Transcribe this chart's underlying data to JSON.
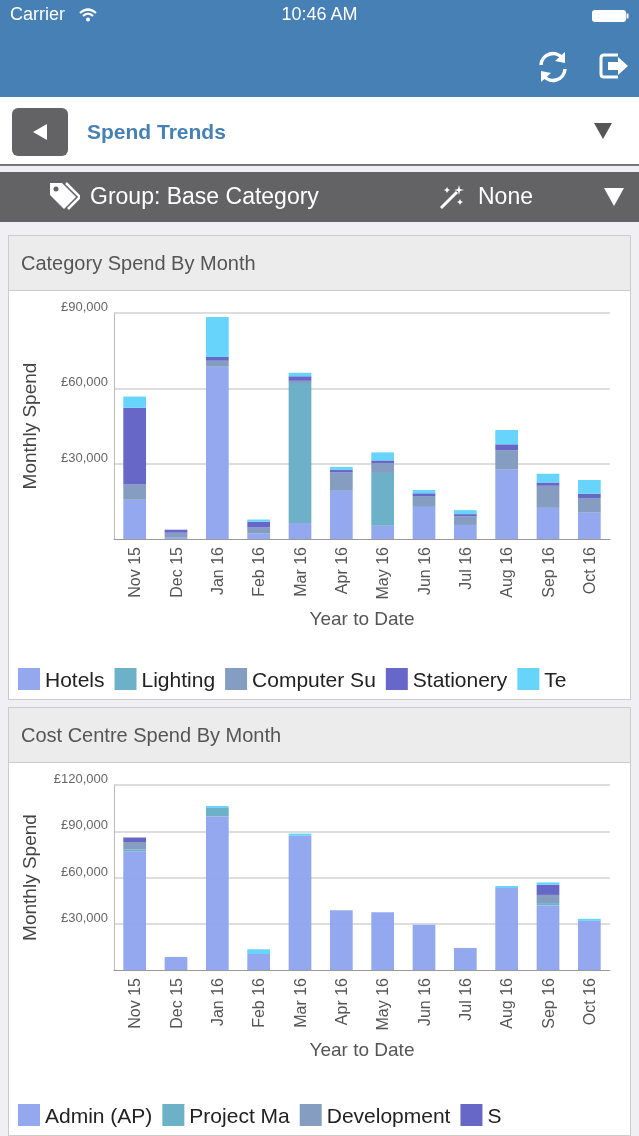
{
  "chart_data": [
    {
      "type": "other",
      "title": "Spend Trends",
      "annotations": [
        "Carrier",
        "10:46 AM",
        "Group: Base Category",
        "None"
      ]
    },
    {
      "type": "bar",
      "title": "Category Spend By Month",
      "xlabel": "Year to Date",
      "ylabel": "Monthly Spend",
      "stacked": true,
      "legend": "bottom",
      "grid": "y",
      "categories": [
        "Nov 15",
        "Dec 15",
        "Jan 16",
        "Feb 16",
        "Mar 16",
        "Apr 16",
        "May 16",
        "Jun 16",
        "Jul 16",
        "Aug 16",
        "Sep 16",
        "Oct 16"
      ],
      "ylim": [
        0,
        90000
      ],
      "yticks": [
        {
          "value": 30000,
          "label": "£30,000"
        },
        {
          "value": 60000,
          "label": "£60,000"
        },
        {
          "value": 90000,
          "label": "£90,000"
        }
      ],
      "series": [
        {
          "name": "Hotels",
          "color": "#8ea3ee",
          "values": [
            15600,
            500,
            68600,
            2200,
            6400,
            19200,
            5300,
            12800,
            5600,
            27600,
            12400,
            10500
          ]
        },
        {
          "name": "Lighting",
          "color": "#64adc4",
          "values": [
            0,
            0,
            0,
            0,
            55700,
            0,
            21000,
            0,
            0,
            0,
            0,
            0
          ]
        },
        {
          "name": "Computer Su",
          "color": "#7f98bf",
          "values": [
            6100,
            2000,
            2400,
            2400,
            900,
            7300,
            3900,
            4300,
            3500,
            7700,
            8800,
            5800
          ]
        },
        {
          "name": "Stationery",
          "color": "#5f5fc4",
          "values": [
            30600,
            1200,
            1500,
            2300,
            1800,
            1100,
            1100,
            1100,
            800,
            2400,
            1300,
            1700
          ]
        },
        {
          "name": "Te",
          "color": "#5fd3fb",
          "values": [
            4400,
            0,
            15900,
            900,
            1400,
            1100,
            3200,
            1300,
            1600,
            5700,
            3500,
            5500
          ]
        }
      ]
    },
    {
      "type": "bar",
      "title": "Cost Centre Spend By Month",
      "xlabel": "Year to Date",
      "ylabel": "Monthly Spend",
      "stacked": true,
      "legend": "bottom",
      "grid": "y",
      "categories": [
        "Nov 15",
        "Dec 15",
        "Jan 16",
        "Feb 16",
        "Mar 16",
        "Apr 16",
        "May 16",
        "Jun 16",
        "Jul 16",
        "Aug 16",
        "Sep 16",
        "Oct 16"
      ],
      "ylim": [
        0,
        120000
      ],
      "yticks": [
        {
          "value": 30000,
          "label": "£30,000"
        },
        {
          "value": 60000,
          "label": "£60,000"
        },
        {
          "value": 90000,
          "label": "£90,000"
        },
        {
          "value": 120000,
          "label": "£120,000"
        }
      ],
      "series": [
        {
          "name": "Admin (AP)",
          "color": "#8ea3ee",
          "values": [
            77000,
            8500,
            99600,
            10400,
            87000,
            38700,
            37500,
            29400,
            14300,
            53200,
            41900,
            31900
          ]
        },
        {
          "name": "Project Ma",
          "color": "#64adc4",
          "values": [
            1100,
            0,
            5500,
            0,
            0,
            0,
            0,
            0,
            0,
            0,
            1500,
            0
          ]
        },
        {
          "name": "Development",
          "color": "#7f98bf",
          "values": [
            4900,
            0,
            0,
            0,
            0,
            0,
            0,
            0,
            0,
            0,
            5300,
            0
          ]
        },
        {
          "name": "S",
          "color": "#5f5fc4",
          "values": [
            3000,
            0,
            0,
            0,
            0,
            0,
            0,
            0,
            0,
            0,
            6600,
            0
          ]
        },
        {
          "color": "#5fd3fb",
          "values": [
            0,
            0,
            1300,
            3000,
            1500,
            0,
            0,
            0,
            0,
            1300,
            1500,
            1300
          ]
        }
      ]
    }
  ]
}
